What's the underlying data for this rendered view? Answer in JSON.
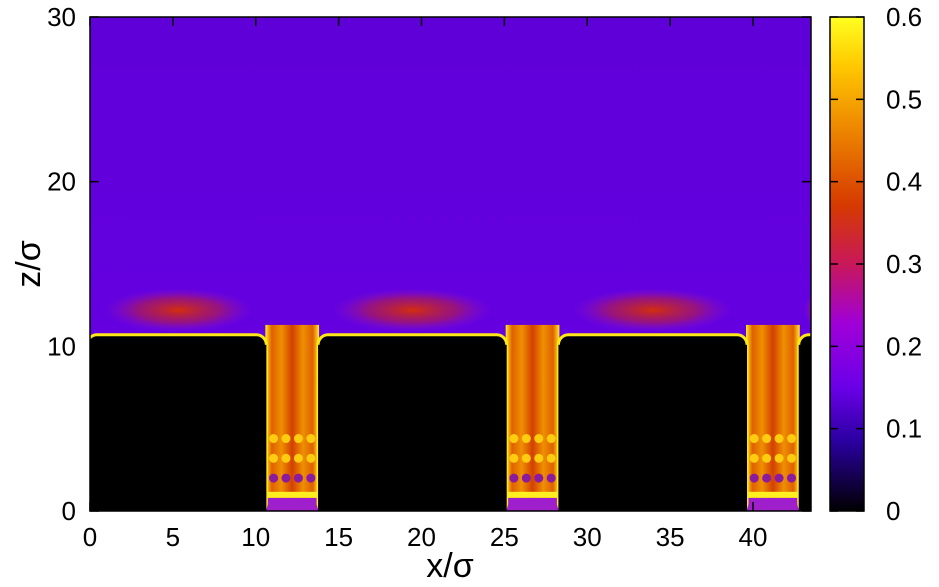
{
  "chart_data": {
    "type": "heatmap",
    "xlabel": "x/σ",
    "ylabel": "z/σ",
    "xlim": [
      0,
      43.5
    ],
    "ylim": [
      0,
      30
    ],
    "x_ticks": [
      0,
      5,
      10,
      15,
      20,
      25,
      30,
      35,
      40
    ],
    "y_ticks": [
      0,
      10,
      20,
      30
    ],
    "colorbar": {
      "range": [
        0,
        0.6
      ],
      "ticks": [
        0,
        0.1,
        0.2,
        0.3,
        0.4,
        0.5,
        0.6
      ],
      "colormap": "black-blue-purple-red-orange-yellow",
      "colors": [
        "#000000",
        "#2200aa",
        "#6600ee",
        "#9900dd",
        "#cc2200",
        "#ee8800",
        "#ffcc00",
        "#ffff00"
      ]
    },
    "structure": {
      "wall_top": 10.7,
      "groove_bottom": 0.8,
      "grooves": [
        [
          10.7,
          13.7
        ],
        [
          25.2,
          28.2
        ],
        [
          39.7,
          42.7
        ]
      ],
      "bulk_value": 0.12,
      "contact_value": 0.6
    }
  }
}
